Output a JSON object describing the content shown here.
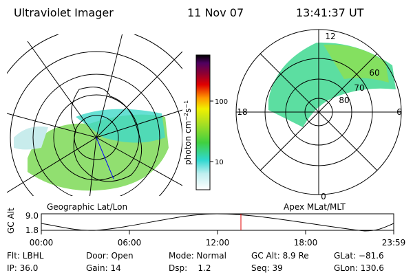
{
  "header": {
    "title": "Ultraviolet Imager",
    "date": "11 Nov 07",
    "time": "13:41:37 UT"
  },
  "left_panel": {
    "label": "Geographic Lat/Lon"
  },
  "right_panel": {
    "label": "Apex MLat/MLT",
    "mlt_labels": [
      "12",
      "18",
      "6",
      "0"
    ],
    "lat_labels": [
      "60",
      "70",
      "80"
    ]
  },
  "colorbar": {
    "label": "photon cm",
    "exp1": "−2",
    "unit2": "s",
    "exp2": "−1",
    "ticks": [
      "100",
      "10"
    ]
  },
  "altitude_plot": {
    "ylabel": "GC Alt",
    "yticks": [
      "9.0",
      "1.8"
    ],
    "xticks": [
      "00:00",
      "06:00",
      "12:00",
      "18:00",
      "23:59"
    ]
  },
  "status": {
    "rows": [
      [
        "Flt: LBHL",
        "Door: Open",
        "Mode: Normal",
        "GC Alt: 8.9 Re",
        "GLat: −81.6"
      ],
      [
        "IP: 36.0",
        "Gain: 14",
        "Dsp:    1.2",
        "Seq: 39",
        "GLon: 130.6"
      ]
    ]
  }
}
